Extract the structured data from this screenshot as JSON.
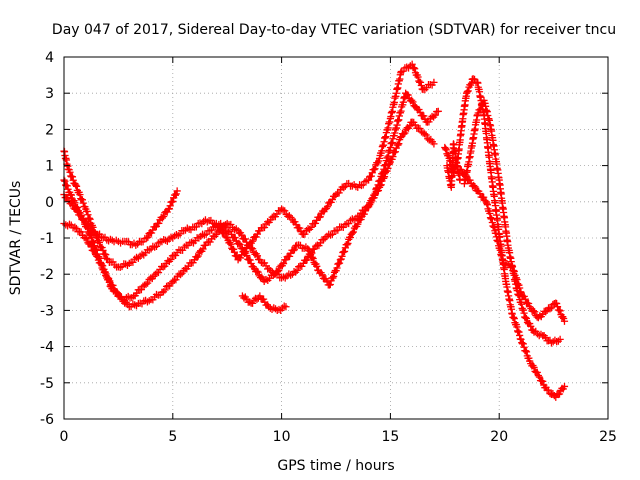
{
  "chart_data": {
    "type": "scatter",
    "title": "Day 047 of 2017, Sidereal Day-to-day VTEC variation (SDTVAR) for receiver tncu",
    "xlabel": "GPS time / hours",
    "ylabel": "SDTVAR / TECUs",
    "xlim": [
      0,
      25
    ],
    "ylim": [
      -6,
      4
    ],
    "xticks": [
      "0",
      "5",
      "10",
      "15",
      "20",
      "25"
    ],
    "yticks": [
      "-6",
      "-5",
      "-4",
      "-3",
      "-2",
      "-1",
      "0",
      "1",
      "2",
      "3",
      "4"
    ],
    "grid": true,
    "marker": "plus",
    "series_color": "#ff0000",
    "series": [
      {
        "x": [
          0.0,
          0.2,
          0.5,
          1.0,
          1.5,
          2.0,
          2.5,
          3.0,
          3.5,
          4.0,
          4.5,
          5.0,
          5.5,
          6.0,
          6.5,
          7.0,
          7.5,
          8.0,
          8.5,
          9.0,
          9.5,
          10.0,
          10.5,
          11.0,
          11.5,
          12.0,
          12.5,
          13.0,
          13.5,
          14.0,
          14.5,
          15.0,
          15.5,
          16.0,
          16.5,
          17.0
        ],
        "y": [
          1.4,
          0.9,
          0.5,
          -0.2,
          -1.0,
          -1.6,
          -1.8,
          -1.7,
          -1.5,
          -1.3,
          -1.1,
          -1.0,
          -0.8,
          -0.7,
          -0.5,
          -0.6,
          -1.0,
          -1.6,
          -1.2,
          -0.8,
          -0.5,
          -0.2,
          -0.5,
          -0.9,
          -0.6,
          -0.2,
          0.2,
          0.5,
          0.4,
          0.6,
          1.2,
          2.3,
          3.6,
          3.8,
          3.1,
          3.3
        ]
      },
      {
        "x": [
          0.0,
          0.3,
          0.7,
          1.2,
          1.7,
          2.2,
          2.7,
          3.2,
          3.7,
          4.2,
          4.7,
          5.2,
          5.7,
          6.2,
          6.7,
          7.2,
          7.7,
          8.2,
          8.7,
          9.2,
          9.7,
          10.2,
          10.7,
          11.2,
          11.7,
          12.2,
          12.7,
          13.2,
          13.7,
          14.2,
          14.7,
          15.2,
          15.7,
          16.2,
          16.7,
          17.2
        ],
        "y": [
          0.6,
          0.2,
          -0.3,
          -0.9,
          -1.7,
          -2.4,
          -2.7,
          -2.6,
          -2.3,
          -2.0,
          -1.7,
          -1.4,
          -1.2,
          -1.0,
          -0.8,
          -0.6,
          -0.9,
          -1.3,
          -1.8,
          -2.2,
          -2.0,
          -1.6,
          -1.2,
          -1.3,
          -1.9,
          -2.3,
          -1.6,
          -0.9,
          -0.4,
          0.1,
          0.9,
          1.9,
          3.0,
          2.6,
          2.2,
          2.5
        ]
      },
      {
        "x": [
          0.0,
          0.5,
          1.0,
          1.5,
          2.0,
          2.5,
          3.0,
          3.5,
          4.0,
          4.5,
          5.0,
          5.5,
          6.0,
          6.5,
          7.0,
          7.5,
          8.0,
          8.5,
          9.0,
          9.5,
          10.0,
          10.5,
          11.0,
          11.5,
          12.0,
          12.5,
          13.0,
          13.5,
          14.0,
          14.5,
          15.0,
          15.5,
          16.0,
          16.5,
          17.0
        ],
        "y": [
          -0.6,
          -0.7,
          -1.0,
          -1.5,
          -2.1,
          -2.6,
          -2.9,
          -2.8,
          -2.7,
          -2.5,
          -2.2,
          -1.9,
          -1.6,
          -1.2,
          -0.9,
          -0.6,
          -0.8,
          -1.2,
          -1.6,
          -1.9,
          -2.1,
          -2.0,
          -1.7,
          -1.3,
          -1.0,
          -0.8,
          -0.6,
          -0.4,
          -0.1,
          0.4,
          1.1,
          1.8,
          2.2,
          1.9,
          1.6
        ]
      },
      {
        "x": [
          0.0,
          0.4,
          0.9,
          1.3,
          1.8,
          2.3,
          2.8,
          3.3,
          3.8,
          4.3,
          4.8,
          5.2
        ],
        "y": [
          0.2,
          -0.1,
          -0.5,
          -0.8,
          -1.0,
          -1.1,
          -1.1,
          -1.2,
          -1.0,
          -0.6,
          -0.2,
          0.3
        ]
      },
      {
        "x": [
          8.2,
          8.6,
          9.0,
          9.4,
          9.8,
          10.2
        ],
        "y": [
          -2.6,
          -2.8,
          -2.6,
          -2.9,
          -3.0,
          -2.9
        ]
      },
      {
        "x": [
          17.5,
          17.7,
          17.9,
          18.1,
          18.3,
          18.5,
          18.8,
          19.0,
          19.3,
          19.6,
          20.0,
          20.3,
          20.6,
          21.0,
          21.4,
          21.8,
          22.2,
          22.6,
          23.0
        ],
        "y": [
          1.5,
          1.2,
          0.8,
          1.2,
          2.2,
          3.0,
          3.4,
          3.3,
          2.4,
          0.9,
          -0.9,
          -2.2,
          -3.1,
          -3.8,
          -4.4,
          -4.8,
          -5.2,
          -5.4,
          -5.1
        ]
      },
      {
        "x": [
          18.4,
          18.7,
          19.0,
          19.3,
          19.6,
          20.0,
          20.4,
          20.8,
          21.2,
          21.6,
          22.0,
          22.4,
          22.8
        ],
        "y": [
          0.5,
          1.4,
          2.4,
          2.8,
          2.1,
          0.6,
          -1.2,
          -2.4,
          -3.2,
          -3.6,
          -3.7,
          -3.9,
          -3.8
        ]
      },
      {
        "x": [
          18.2,
          18.6,
          19.0,
          19.4,
          19.8,
          20.2,
          20.6,
          21.0,
          21.4,
          21.8,
          22.2,
          22.6,
          23.0
        ],
        "y": [
          0.9,
          0.6,
          0.3,
          0.0,
          -0.8,
          -1.7,
          -1.8,
          -2.5,
          -2.9,
          -3.2,
          -3.0,
          -2.8,
          -3.3
        ]
      },
      {
        "x": [
          17.6,
          17.8,
          17.9,
          18.0,
          18.2
        ],
        "y": [
          1.0,
          0.4,
          1.6,
          1.2,
          0.6
        ]
      }
    ]
  }
}
